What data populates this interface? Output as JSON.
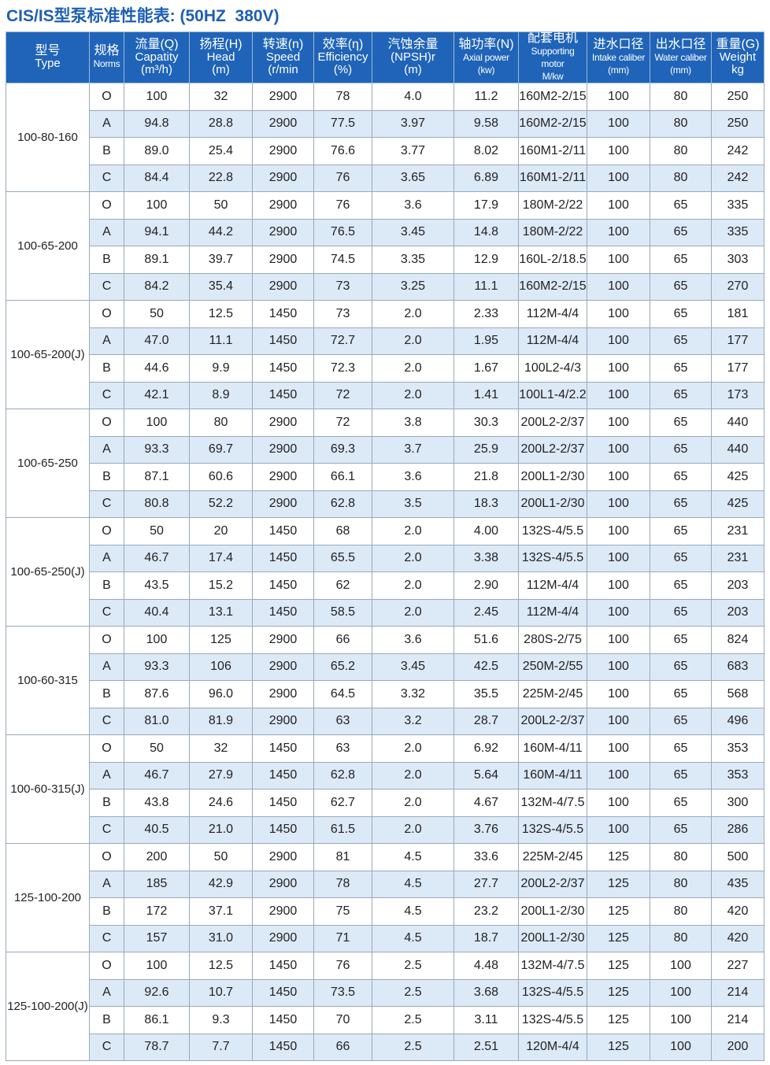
{
  "title": "CIS/IS型泵标准性能表: (50HZ  380V)",
  "table": {
    "header": [
      [
        "型号",
        "Type"
      ],
      [
        "规格",
        "Norms"
      ],
      [
        "流量(Q)",
        "Capatity",
        "(m³/h)"
      ],
      [
        "扬程(H)",
        "Head",
        "(m)"
      ],
      [
        "转速(n)",
        "Speed",
        "(r/min"
      ],
      [
        "效率(η)",
        "Efficiency",
        "(%)"
      ],
      [
        "汽蚀余量",
        "(NPSH)r",
        "(m)"
      ],
      [
        "轴功率(N)",
        "Axial power",
        "(kw)"
      ],
      [
        "配套电机",
        "Supporting",
        "motor",
        "M/kw"
      ],
      [
        "进水口径",
        "Intake caliber",
        "(mm)"
      ],
      [
        "出水口径",
        "Water caliber",
        "(mm)"
      ],
      [
        "重量(G)",
        "Weight",
        "kg"
      ]
    ],
    "groups": [
      {
        "type": "100-80-160",
        "rows": [
          [
            "O",
            "100",
            "32",
            "2900",
            "78",
            "4.0",
            "11.2",
            "160M2-2/15",
            "100",
            "80",
            "250"
          ],
          [
            "A",
            "94.8",
            "28.8",
            "2900",
            "77.5",
            "3.97",
            "9.58",
            "160M2-2/15",
            "100",
            "80",
            "250"
          ],
          [
            "B",
            "89.0",
            "25.4",
            "2900",
            "76.6",
            "3.77",
            "8.02",
            "160M1-2/11",
            "100",
            "80",
            "242"
          ],
          [
            "C",
            "84.4",
            "22.8",
            "2900",
            "76",
            "3.65",
            "6.89",
            "160M1-2/11",
            "100",
            "80",
            "242"
          ]
        ]
      },
      {
        "type": "100-65-200",
        "rows": [
          [
            "O",
            "100",
            "50",
            "2900",
            "76",
            "3.6",
            "17.9",
            "180M-2/22",
            "100",
            "65",
            "335"
          ],
          [
            "A",
            "94.1",
            "44.2",
            "2900",
            "76.5",
            "3.45",
            "14.8",
            "180M-2/22",
            "100",
            "65",
            "335"
          ],
          [
            "B",
            "89.1",
            "39.7",
            "2900",
            "74.5",
            "3.35",
            "12.9",
            "160L-2/18.5",
            "100",
            "65",
            "303"
          ],
          [
            "C",
            "84.2",
            "35.4",
            "2900",
            "73",
            "3.25",
            "11.1",
            "160M2-2/15",
            "100",
            "65",
            "270"
          ]
        ]
      },
      {
        "type": "100-65-200(J)",
        "rows": [
          [
            "O",
            "50",
            "12.5",
            "1450",
            "73",
            "2.0",
            "2.33",
            "112M-4/4",
            "100",
            "65",
            "181"
          ],
          [
            "A",
            "47.0",
            "11.1",
            "1450",
            "72.7",
            "2.0",
            "1.95",
            "112M-4/4",
            "100",
            "65",
            "177"
          ],
          [
            "B",
            "44.6",
            "9.9",
            "1450",
            "72.3",
            "2.0",
            "1.67",
            "100L2-4/3",
            "100",
            "65",
            "177"
          ],
          [
            "C",
            "42.1",
            "8.9",
            "1450",
            "72",
            "2.0",
            "1.41",
            "100L1-4/2.2",
            "100",
            "65",
            "173"
          ]
        ]
      },
      {
        "type": "100-65-250",
        "rows": [
          [
            "O",
            "100",
            "80",
            "2900",
            "72",
            "3.8",
            "30.3",
            "200L2-2/37",
            "100",
            "65",
            "440"
          ],
          [
            "A",
            "93.3",
            "69.7",
            "2900",
            "69.3",
            "3.7",
            "25.9",
            "200L2-2/37",
            "100",
            "65",
            "440"
          ],
          [
            "B",
            "87.1",
            "60.6",
            "2900",
            "66.1",
            "3.6",
            "21.8",
            "200L1-2/30",
            "100",
            "65",
            "425"
          ],
          [
            "C",
            "80.8",
            "52.2",
            "2900",
            "62.8",
            "3.5",
            "18.3",
            "200L1-2/30",
            "100",
            "65",
            "425"
          ]
        ]
      },
      {
        "type": "100-65-250(J)",
        "rows": [
          [
            "O",
            "50",
            "20",
            "1450",
            "68",
            "2.0",
            "4.00",
            "132S-4/5.5",
            "100",
            "65",
            "231"
          ],
          [
            "A",
            "46.7",
            "17.4",
            "1450",
            "65.5",
            "2.0",
            "3.38",
            "132S-4/5.5",
            "100",
            "65",
            "231"
          ],
          [
            "B",
            "43.5",
            "15.2",
            "1450",
            "62",
            "2.0",
            "2.90",
            "112M-4/4",
            "100",
            "65",
            "203"
          ],
          [
            "C",
            "40.4",
            "13.1",
            "1450",
            "58.5",
            "2.0",
            "2.45",
            "112M-4/4",
            "100",
            "65",
            "203"
          ]
        ]
      },
      {
        "type": "100-60-315",
        "rows": [
          [
            "O",
            "100",
            "125",
            "2900",
            "66",
            "3.6",
            "51.6",
            "280S-2/75",
            "100",
            "65",
            "824"
          ],
          [
            "A",
            "93.3",
            "106",
            "2900",
            "65.2",
            "3.45",
            "42.5",
            "250M-2/55",
            "100",
            "65",
            "683"
          ],
          [
            "B",
            "87.6",
            "96.0",
            "2900",
            "64.5",
            "3.32",
            "35.5",
            "225M-2/45",
            "100",
            "65",
            "568"
          ],
          [
            "C",
            "81.0",
            "81.9",
            "2900",
            "63",
            "3.2",
            "28.7",
            "200L2-2/37",
            "100",
            "65",
            "496"
          ]
        ]
      },
      {
        "type": "100-60-315(J)",
        "rows": [
          [
            "O",
            "50",
            "32",
            "1450",
            "63",
            "2.0",
            "6.92",
            "160M-4/11",
            "100",
            "65",
            "353"
          ],
          [
            "A",
            "46.7",
            "27.9",
            "1450",
            "62.8",
            "2.0",
            "5.64",
            "160M-4/11",
            "100",
            "65",
            "353"
          ],
          [
            "B",
            "43.8",
            "24.6",
            "1450",
            "62.7",
            "2.0",
            "4.67",
            "132M-4/7.5",
            "100",
            "65",
            "300"
          ],
          [
            "C",
            "40.5",
            "21.0",
            "1450",
            "61.5",
            "2.0",
            "3.76",
            "132S-4/5.5",
            "100",
            "65",
            "286"
          ]
        ]
      },
      {
        "type": "125-100-200",
        "rows": [
          [
            "O",
            "200",
            "50",
            "2900",
            "81",
            "4.5",
            "33.6",
            "225M-2/45",
            "125",
            "80",
            "500"
          ],
          [
            "A",
            "185",
            "42.9",
            "2900",
            "78",
            "4.5",
            "27.7",
            "200L2-2/37",
            "125",
            "80",
            "435"
          ],
          [
            "B",
            "172",
            "37.1",
            "2900",
            "75",
            "4.5",
            "23.2",
            "200L1-2/30",
            "125",
            "80",
            "420"
          ],
          [
            "C",
            "157",
            "31.0",
            "2900",
            "71",
            "4.5",
            "18.7",
            "200L1-2/30",
            "125",
            "80",
            "420"
          ]
        ]
      },
      {
        "type": "125-100-200(J)",
        "rows": [
          [
            "O",
            "100",
            "12.5",
            "1450",
            "76",
            "2.5",
            "4.48",
            "132M-4/7.5",
            "125",
            "100",
            "227"
          ],
          [
            "A",
            "92.6",
            "10.7",
            "1450",
            "73.5",
            "2.5",
            "3.68",
            "132S-4/5.5",
            "125",
            "100",
            "214"
          ],
          [
            "B",
            "86.1",
            "9.3",
            "1450",
            "70",
            "2.5",
            "3.11",
            "132S-4/5.5",
            "125",
            "100",
            "214"
          ],
          [
            "C",
            "78.7",
            "7.7",
            "1450",
            "66",
            "2.5",
            "2.51",
            "120M-4/4",
            "125",
            "100",
            "200"
          ]
        ]
      }
    ]
  }
}
